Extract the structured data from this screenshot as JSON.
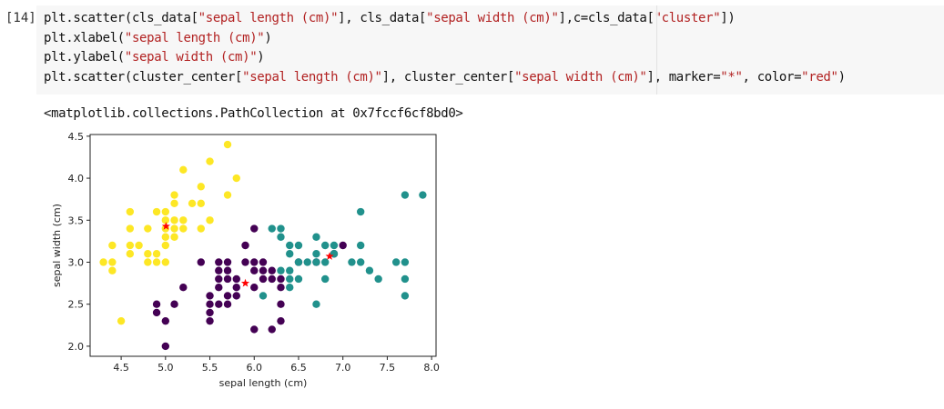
{
  "notebook": {
    "prompt": "[14]",
    "code_lines": [
      [
        {
          "t": "plt.scatter(cls_data["
        },
        {
          "t": "\"sepal length (cm)\"",
          "s": true
        },
        {
          "t": "], cls_data["
        },
        {
          "t": "\"sepal width (cm)\"",
          "s": true
        },
        {
          "t": "],c=cls_data["
        },
        {
          "t": "\"cluster\"",
          "s": true
        },
        {
          "t": "])"
        }
      ],
      [
        {
          "t": "plt.xlabel("
        },
        {
          "t": "\"sepal length (cm)\"",
          "s": true
        },
        {
          "t": ")"
        }
      ],
      [
        {
          "t": "plt.ylabel("
        },
        {
          "t": "\"sepal width (cm)\"",
          "s": true
        },
        {
          "t": ")"
        }
      ],
      [
        {
          "t": "plt.scatter(cluster_center["
        },
        {
          "t": "\"sepal length (cm)\"",
          "s": true
        },
        {
          "t": "], cluster_center["
        },
        {
          "t": "\"sepal width (cm)\"",
          "s": true
        },
        {
          "t": "], marker="
        },
        {
          "t": "\"*\"",
          "s": true
        },
        {
          "t": ", color="
        },
        {
          "t": "\"red\"",
          "s": true
        },
        {
          "t": ")"
        }
      ]
    ],
    "output_text": "<matplotlib.collections.PathCollection at 0x7fccf6cf8bd0>"
  },
  "chart_data": {
    "type": "scatter",
    "xlabel": "sepal length (cm)",
    "ylabel": "sepal width (cm)",
    "xlim": [
      4.15,
      8.05
    ],
    "ylim": [
      1.88,
      4.52
    ],
    "xticks": [
      4.5,
      5.0,
      5.5,
      6.0,
      6.5,
      7.0,
      7.5,
      8.0
    ],
    "xtick_labels": [
      "4.5",
      "5.0",
      "5.5",
      "6.0",
      "6.5",
      "7.0",
      "7.5",
      "8.0"
    ],
    "yticks": [
      2.0,
      2.5,
      3.0,
      3.5,
      4.0,
      4.5
    ],
    "ytick_labels": [
      "2.0",
      "2.5",
      "3.0",
      "3.5",
      "4.0",
      "4.5"
    ],
    "grid": false,
    "series": [
      {
        "color": "#fde725",
        "points": [
          [
            4.3,
            3.0
          ],
          [
            4.4,
            2.9
          ],
          [
            4.4,
            3.0
          ],
          [
            4.4,
            3.2
          ],
          [
            4.5,
            2.3
          ],
          [
            4.6,
            3.1
          ],
          [
            4.6,
            3.2
          ],
          [
            4.6,
            3.4
          ],
          [
            4.6,
            3.6
          ],
          [
            4.7,
            3.2
          ],
          [
            4.8,
            3.0
          ],
          [
            4.8,
            3.1
          ],
          [
            4.8,
            3.4
          ],
          [
            4.9,
            3.0
          ],
          [
            4.9,
            3.1
          ],
          [
            4.9,
            3.6
          ],
          [
            5.0,
            3.0
          ],
          [
            5.0,
            3.2
          ],
          [
            5.0,
            3.3
          ],
          [
            5.0,
            3.4
          ],
          [
            5.0,
            3.5
          ],
          [
            5.0,
            3.6
          ],
          [
            5.1,
            3.3
          ],
          [
            5.1,
            3.4
          ],
          [
            5.1,
            3.5
          ],
          [
            5.1,
            3.7
          ],
          [
            5.1,
            3.8
          ],
          [
            5.2,
            3.4
          ],
          [
            5.2,
            3.5
          ],
          [
            5.2,
            4.1
          ],
          [
            5.3,
            3.7
          ],
          [
            5.4,
            3.4
          ],
          [
            5.4,
            3.7
          ],
          [
            5.4,
            3.9
          ],
          [
            5.5,
            3.5
          ],
          [
            5.5,
            4.2
          ],
          [
            5.7,
            3.8
          ],
          [
            5.7,
            4.4
          ],
          [
            5.8,
            4.0
          ]
        ]
      },
      {
        "color": "#440154",
        "points": [
          [
            4.9,
            2.4
          ],
          [
            4.9,
            2.5
          ],
          [
            5.0,
            2.0
          ],
          [
            5.0,
            2.3
          ],
          [
            5.1,
            2.5
          ],
          [
            5.2,
            2.7
          ],
          [
            5.4,
            3.0
          ],
          [
            5.5,
            2.3
          ],
          [
            5.5,
            2.4
          ],
          [
            5.5,
            2.5
          ],
          [
            5.5,
            2.6
          ],
          [
            5.6,
            2.5
          ],
          [
            5.6,
            2.7
          ],
          [
            5.6,
            2.8
          ],
          [
            5.6,
            2.9
          ],
          [
            5.6,
            3.0
          ],
          [
            5.7,
            2.5
          ],
          [
            5.7,
            2.6
          ],
          [
            5.7,
            2.8
          ],
          [
            5.7,
            2.9
          ],
          [
            5.7,
            3.0
          ],
          [
            5.8,
            2.6
          ],
          [
            5.8,
            2.7
          ],
          [
            5.8,
            2.8
          ],
          [
            5.9,
            3.0
          ],
          [
            6.0,
            2.2
          ],
          [
            6.0,
            2.7
          ],
          [
            6.0,
            2.9
          ],
          [
            6.0,
            3.0
          ],
          [
            6.0,
            3.4
          ],
          [
            6.1,
            2.8
          ],
          [
            6.1,
            2.9
          ],
          [
            6.1,
            3.0
          ],
          [
            6.2,
            2.2
          ],
          [
            6.2,
            2.8
          ],
          [
            6.2,
            2.9
          ],
          [
            6.3,
            2.3
          ],
          [
            6.3,
            2.5
          ],
          [
            6.3,
            2.7
          ],
          [
            6.3,
            2.8
          ],
          [
            5.9,
            3.2
          ],
          [
            6.5,
            3.0
          ],
          [
            6.7,
            3.0
          ],
          [
            6.9,
            3.1
          ],
          [
            7.0,
            3.2
          ]
        ]
      },
      {
        "color": "#21918c",
        "points": [
          [
            6.1,
            2.6
          ],
          [
            6.2,
            3.4
          ],
          [
            6.3,
            2.9
          ],
          [
            6.3,
            3.3
          ],
          [
            6.3,
            3.4
          ],
          [
            6.4,
            2.7
          ],
          [
            6.4,
            2.8
          ],
          [
            6.4,
            2.9
          ],
          [
            6.4,
            3.1
          ],
          [
            6.4,
            3.2
          ],
          [
            6.5,
            2.8
          ],
          [
            6.5,
            3.0
          ],
          [
            6.5,
            3.2
          ],
          [
            6.6,
            3.0
          ],
          [
            6.7,
            2.5
          ],
          [
            6.7,
            3.0
          ],
          [
            6.7,
            3.1
          ],
          [
            6.7,
            3.3
          ],
          [
            6.8,
            2.8
          ],
          [
            6.8,
            3.0
          ],
          [
            6.8,
            3.2
          ],
          [
            6.9,
            3.1
          ],
          [
            6.9,
            3.2
          ],
          [
            7.1,
            3.0
          ],
          [
            7.2,
            3.0
          ],
          [
            7.2,
            3.2
          ],
          [
            7.2,
            3.6
          ],
          [
            7.3,
            2.9
          ],
          [
            7.4,
            2.8
          ],
          [
            7.6,
            3.0
          ],
          [
            7.7,
            2.6
          ],
          [
            7.7,
            2.8
          ],
          [
            7.7,
            3.0
          ],
          [
            7.7,
            3.8
          ],
          [
            7.9,
            3.8
          ]
        ]
      }
    ],
    "centers": {
      "color": "#ff0000",
      "marker": "*",
      "points": [
        [
          5.006,
          3.428
        ],
        [
          5.9,
          2.75
        ],
        [
          6.85,
          3.07
        ]
      ]
    }
  }
}
